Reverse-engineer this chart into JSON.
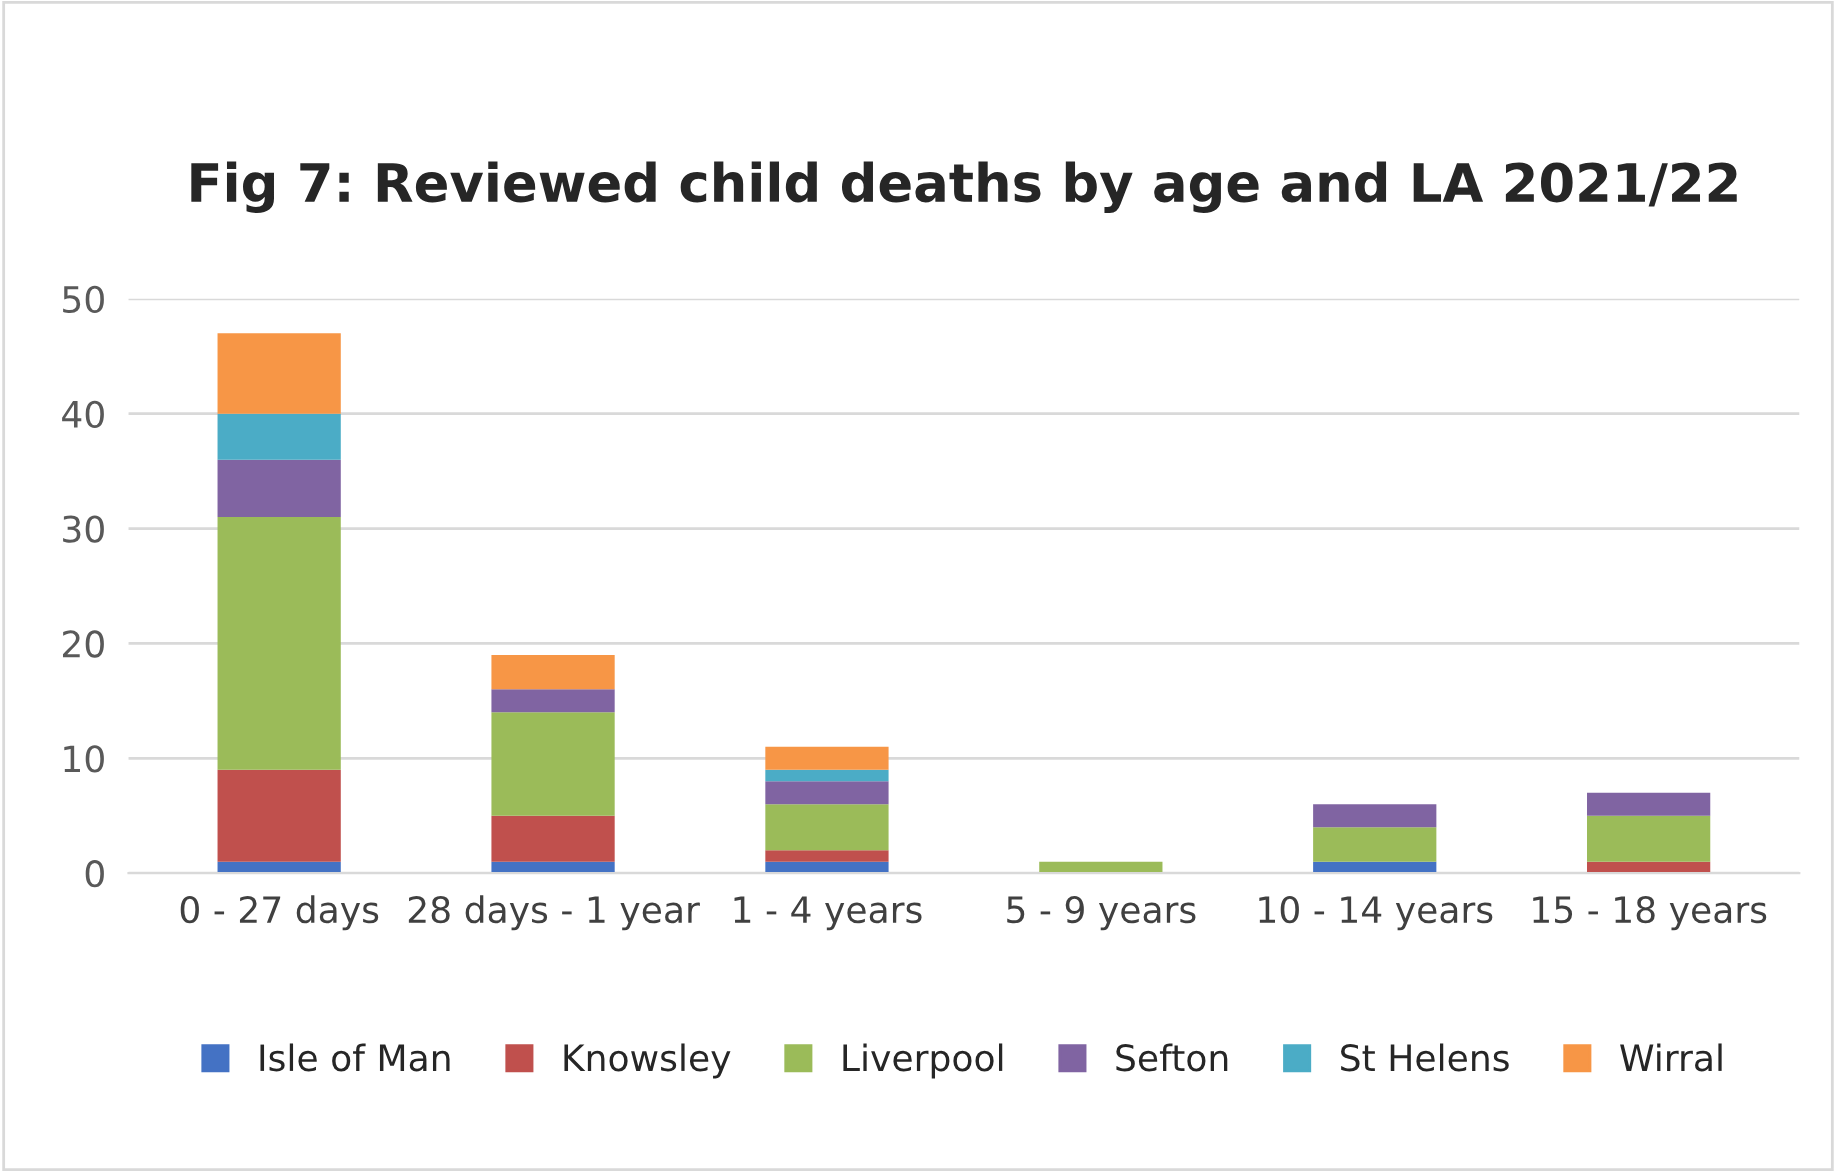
{
  "chart_data": {
    "type": "bar",
    "title": "Fig 7: Reviewed child deaths by age and LA 2021/22",
    "stacked": true,
    "categories": [
      "0 - 27 days",
      "28 days - 1 year",
      "1 - 4 years",
      "5 - 9 years",
      "10 - 14 years",
      "15 - 18 years"
    ],
    "series": [
      {
        "name": "Isle of Man",
        "color": "#4472c4",
        "values": [
          1,
          1,
          1,
          0,
          1,
          0
        ]
      },
      {
        "name": "Knowsley",
        "color": "#c0504d",
        "values": [
          8,
          4,
          1,
          0,
          0,
          1
        ]
      },
      {
        "name": "Liverpool",
        "color": "#9bbb59",
        "values": [
          22,
          9,
          4,
          1,
          3,
          4
        ]
      },
      {
        "name": "Sefton",
        "color": "#8064a2",
        "values": [
          5,
          2,
          2,
          0,
          2,
          2
        ]
      },
      {
        "name": "St Helens",
        "color": "#4bacc6",
        "values": [
          4,
          0,
          1,
          0,
          0,
          0
        ]
      },
      {
        "name": "Wirral",
        "color": "#f79646",
        "values": [
          7,
          3,
          2,
          0,
          0,
          0
        ]
      }
    ],
    "ylim": [
      0,
      50
    ],
    "yticks": [
      0,
      10,
      20,
      30,
      40,
      50
    ],
    "grid": "y",
    "legend": "bottom"
  }
}
